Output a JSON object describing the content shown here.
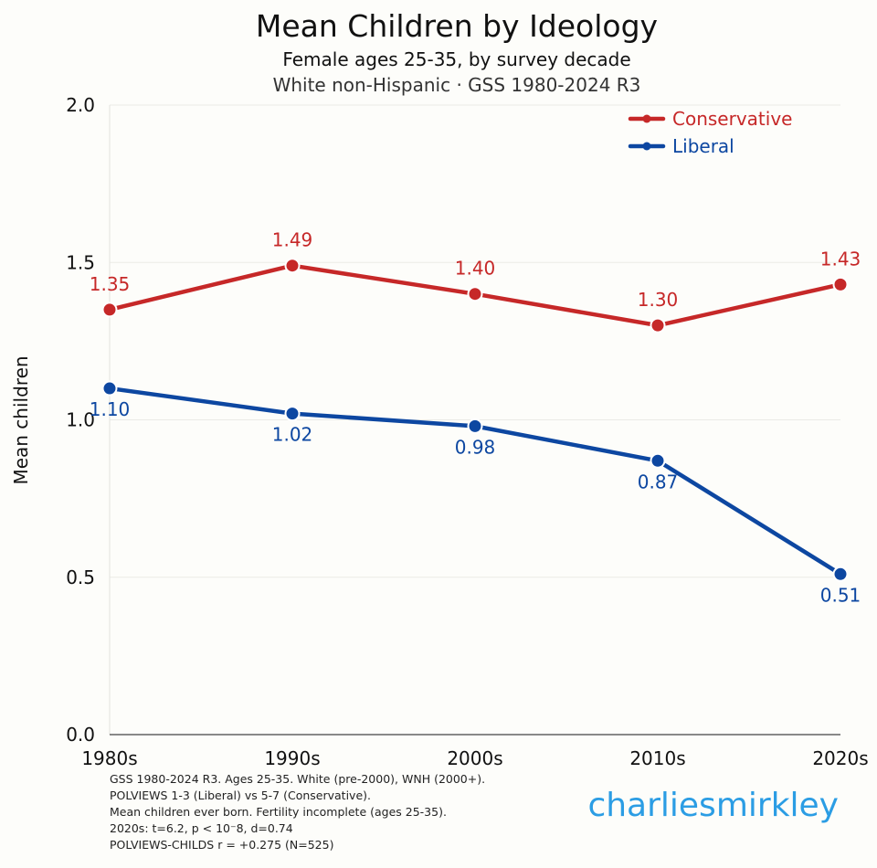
{
  "chart_data": {
    "type": "line",
    "title": "Mean Children by Ideology",
    "subtitle": "Female ages 25-35, by survey decade",
    "subtitle2": "White non-Hispanic · GSS 1980-2024 R3",
    "ylabel": "Mean children",
    "xlabel": "",
    "categories": [
      "1980s",
      "1990s",
      "2000s",
      "2010s",
      "2020s"
    ],
    "ylim": [
      0,
      2.0
    ],
    "yticks": [
      "0.0",
      "0.5",
      "1.0",
      "1.5",
      "2.0"
    ],
    "grid": true,
    "legend_position": "top-right",
    "series": [
      {
        "name": "Conservative",
        "color": "#c62828",
        "values": [
          1.35,
          1.49,
          1.4,
          1.3,
          1.43
        ],
        "labels": [
          "1.35",
          "1.49",
          "1.40",
          "1.30",
          "1.43"
        ],
        "label_position": "above"
      },
      {
        "name": "Liberal",
        "color": "#0d47a1",
        "values": [
          1.1,
          1.02,
          0.98,
          0.87,
          0.51
        ],
        "labels": [
          "1.10",
          "1.02",
          "0.98",
          "0.87",
          "0.51"
        ],
        "label_position": "below"
      }
    ],
    "footnotes": [
      "GSS 1980-2024 R3. Ages 25-35. White (pre-2000), WNH (2000+).",
      "POLVIEWS 1-3 (Liberal) vs 5-7 (Conservative).",
      "Mean children ever born. Fertility incomplete (ages 25-35).",
      "2020s: t=6.2, p < 10⁻8, d=0.74",
      "POLVIEWS-CHILDS r = +0.275 (N=525)"
    ],
    "watermark": "charliesmirkley"
  }
}
